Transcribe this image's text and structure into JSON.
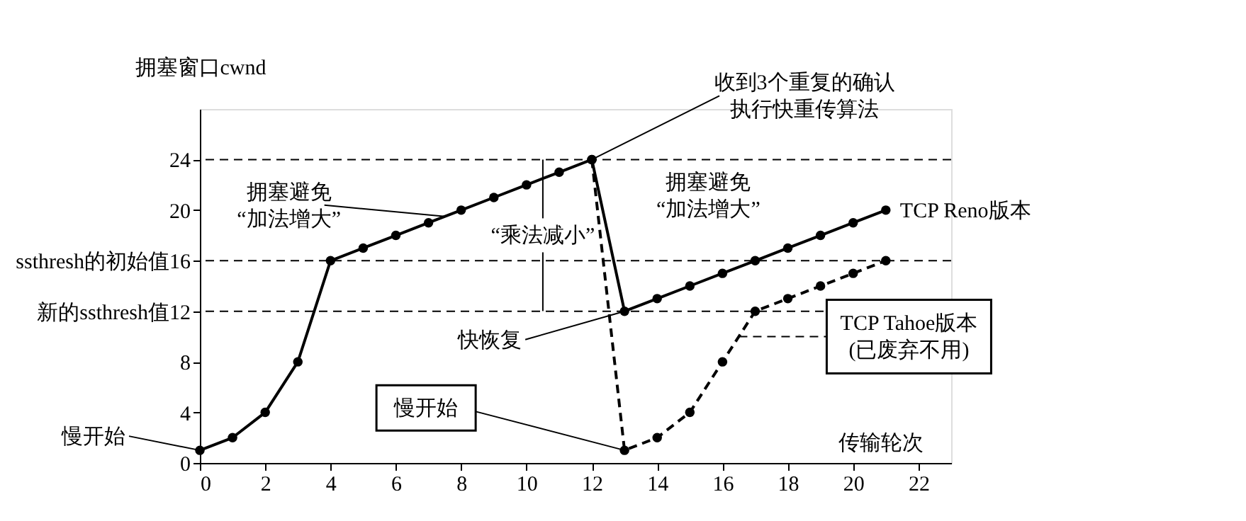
{
  "chart_data": {
    "type": "line",
    "ylabel": "拥塞窗口cwnd",
    "xlabel": "传输轮次",
    "xlim": [
      0,
      23
    ],
    "ylim": [
      0,
      28
    ],
    "xticks": [
      0,
      2,
      4,
      6,
      8,
      10,
      12,
      14,
      16,
      18,
      20,
      22
    ],
    "yticks": [
      0,
      4,
      8,
      {
        "value": 12,
        "label": "新的ssthresh值12"
      },
      {
        "value": 16,
        "label": "ssthresh的初始值16"
      },
      20,
      24
    ],
    "grid": false,
    "marker": "circle",
    "series": [
      {
        "name": "TCP Reno版本",
        "color": "#000000",
        "line_style": "solid",
        "x": [
          0,
          1,
          2,
          3,
          4,
          5,
          6,
          7,
          8,
          9,
          10,
          11,
          12,
          13,
          14,
          15,
          16,
          17,
          18,
          19,
          20,
          21
        ],
        "values": [
          1,
          2,
          4,
          8,
          16,
          17,
          18,
          19,
          20,
          21,
          22,
          23,
          24,
          12,
          13,
          14,
          15,
          16,
          17,
          18,
          19,
          20
        ]
      },
      {
        "name": "TCP Tahoe版本(已废弃不用)",
        "color": "#000000",
        "line_style": "dashed",
        "x": [
          12,
          13,
          14,
          15,
          16,
          17,
          18,
          19,
          20,
          21
        ],
        "values": [
          24,
          1,
          2,
          4,
          8,
          12,
          13,
          14,
          15,
          16
        ]
      }
    ],
    "ref_lines": [
      {
        "axis": "y",
        "value": 24,
        "line_style": "dashed"
      },
      {
        "axis": "y",
        "value": 16,
        "line_style": "dashed"
      },
      {
        "axis": "y",
        "value": 12,
        "line_style": "dashed"
      }
    ],
    "annotations": [
      {
        "text": "慢开始",
        "x": 0,
        "y": 1
      },
      {
        "text": "收到3个重复的确认执行快重传算法",
        "x": 12,
        "y": 24
      },
      {
        "text": "拥塞避免“加法增大”",
        "x": 7.5,
        "y": 19.5
      },
      {
        "text": "拥塞避免“加法增大”",
        "x": 16,
        "y": 15
      },
      {
        "text": "“乘法减小”",
        "x": 10.5,
        "y": 24
      },
      {
        "text": "快恢复",
        "x": 13,
        "y": 12
      },
      {
        "text": "慢开始",
        "x": 13,
        "y": 1
      }
    ]
  }
}
